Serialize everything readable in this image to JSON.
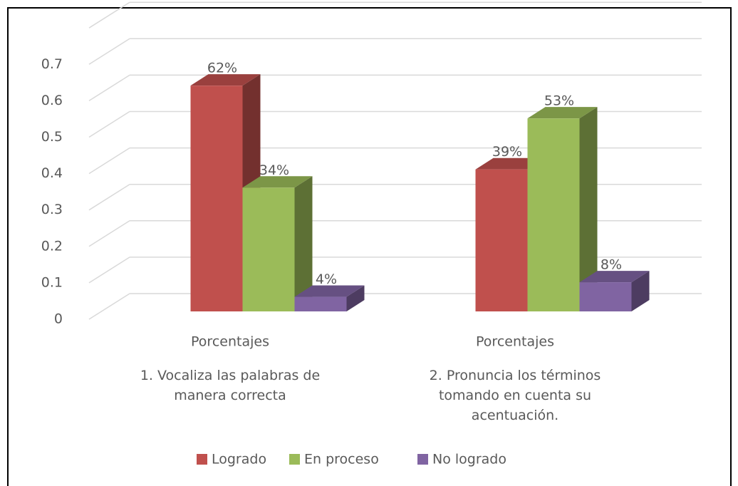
{
  "chart_data": {
    "type": "bar3d",
    "categories": [
      "1. Vocaliza las palabras de manera correcta",
      "2. Pronuncia los términos tomando en cuenta su acentuación."
    ],
    "subcategories": [
      "Porcentajes",
      "Porcentajes"
    ],
    "series": [
      {
        "name": "Logrado",
        "color": "#c0504d",
        "values": [
          0.62,
          0.39
        ],
        "value_labels": [
          "62%",
          "39%"
        ]
      },
      {
        "name": "En proceso",
        "color": "#9bbb59",
        "values": [
          0.34,
          0.53
        ],
        "value_labels": [
          "34%",
          "53%"
        ]
      },
      {
        "name": "No logrado",
        "color": "#8064a2",
        "values": [
          0.04,
          0.08
        ],
        "value_labels": [
          "4%",
          "8%"
        ]
      }
    ],
    "ylim": [
      0,
      0.8
    ],
    "yticks": [
      0,
      0.1,
      0.2,
      0.3,
      0.4,
      0.5,
      0.6,
      0.7
    ],
    "grid": true,
    "legend": "bottom"
  }
}
